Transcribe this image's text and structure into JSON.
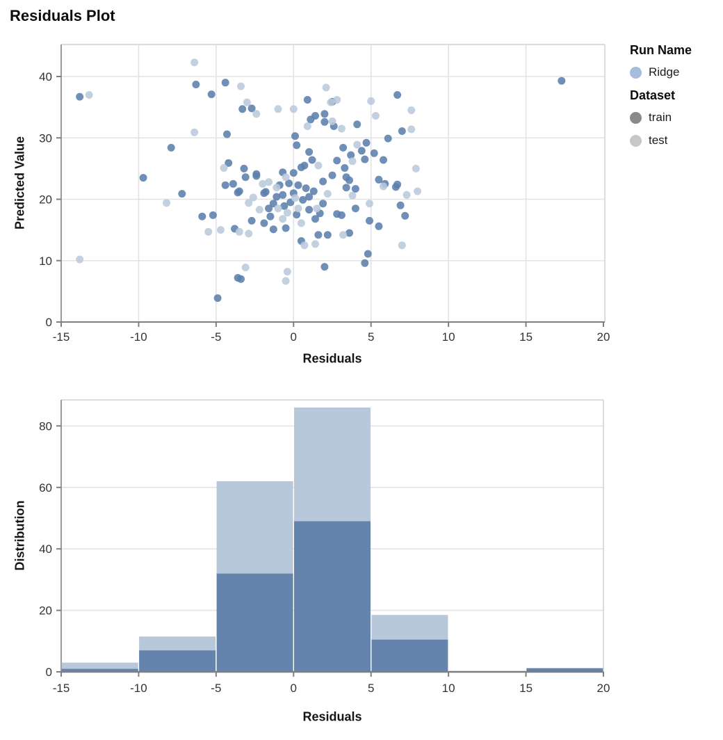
{
  "title": "Residuals Plot",
  "legend": {
    "run_name_title": "Run Name",
    "runs": [
      {
        "label": "Ridge",
        "color": "#a5bcdb"
      }
    ],
    "dataset_title": "Dataset",
    "datasets": [
      {
        "label": "train",
        "color": "#8a8a8a"
      },
      {
        "label": "test",
        "color": "#c7c7c7"
      }
    ]
  },
  "colors": {
    "train_point": "#5c80ad",
    "test_point": "#b9c9dc",
    "hist_train": "#6484ae",
    "hist_test": "#b7c8da",
    "grid": "#e3e3e3",
    "border": "#dcdcdc",
    "axis": "#7f7f7f",
    "side_axis": "#9a9a9a",
    "tick_text": "#333333"
  },
  "chart_data": [
    {
      "type": "scatter",
      "title": "Residuals Plot",
      "xlabel": "Residuals",
      "ylabel": "Predicted Value",
      "xlim": [
        -15,
        20.1
      ],
      "ylim": [
        0,
        45.2
      ],
      "xticks": [
        -15,
        -10,
        -5,
        0,
        5,
        10,
        15,
        20
      ],
      "yticks": [
        0,
        10,
        20,
        30,
        40
      ],
      "grid": true,
      "legend_position": "right",
      "series": [
        {
          "name": "Ridge / train",
          "points": [
            [
              -13.8,
              36.7
            ],
            [
              -6.3,
              38.7
            ],
            [
              -5.3,
              37.1
            ],
            [
              -4.4,
              39.0
            ],
            [
              -3.3,
              34.7
            ],
            [
              -2.7,
              34.8
            ],
            [
              0.9,
              36.2
            ],
            [
              1.4,
              33.6
            ],
            [
              2.0,
              33.9
            ],
            [
              1.1,
              33.0
            ],
            [
              2.0,
              32.6
            ],
            [
              -4.3,
              30.6
            ],
            [
              0.1,
              30.3
            ],
            [
              0.2,
              28.8
            ],
            [
              -7.9,
              28.4
            ],
            [
              1.0,
              27.7
            ],
            [
              -4.2,
              25.9
            ],
            [
              -3.2,
              25.0
            ],
            [
              -2.4,
              24.1
            ],
            [
              -0.7,
              24.4
            ],
            [
              0.0,
              24.3
            ],
            [
              0.5,
              25.2
            ],
            [
              0.7,
              25.5
            ],
            [
              1.2,
              26.4
            ],
            [
              1.9,
              22.9
            ],
            [
              -9.7,
              23.5
            ],
            [
              17.3,
              39.3
            ],
            [
              6.7,
              37.0
            ],
            [
              2.5,
              35.9
            ],
            [
              4.1,
              32.2
            ],
            [
              2.6,
              31.9
            ],
            [
              7.0,
              31.1
            ],
            [
              6.1,
              29.9
            ],
            [
              4.7,
              29.2
            ],
            [
              3.2,
              28.4
            ],
            [
              4.4,
              27.9
            ],
            [
              5.2,
              27.5
            ],
            [
              3.7,
              27.2
            ],
            [
              2.8,
              26.3
            ],
            [
              4.6,
              26.5
            ],
            [
              5.8,
              26.4
            ],
            [
              3.3,
              25.1
            ],
            [
              2.5,
              23.9
            ],
            [
              3.4,
              23.6
            ],
            [
              3.6,
              23.1
            ],
            [
              5.5,
              23.2
            ],
            [
              5.9,
              22.5
            ],
            [
              6.7,
              22.4
            ],
            [
              -7.2,
              20.9
            ],
            [
              -5.9,
              17.2
            ],
            [
              -5.2,
              17.4
            ],
            [
              -3.8,
              15.2
            ],
            [
              -3.6,
              21.1
            ],
            [
              -2.7,
              16.5
            ],
            [
              -1.8,
              21.2
            ],
            [
              -1.9,
              16.1
            ],
            [
              -1.6,
              18.5
            ],
            [
              -1.3,
              19.3
            ],
            [
              -1.5,
              17.2
            ],
            [
              -1.3,
              15.1
            ],
            [
              -1.1,
              20.4
            ],
            [
              -0.7,
              20.7
            ],
            [
              -0.5,
              15.3
            ],
            [
              -0.2,
              19.5
            ],
            [
              0.0,
              21.0
            ],
            [
              0.6,
              19.9
            ],
            [
              0.5,
              13.2
            ],
            [
              1.0,
              20.4
            ],
            [
              1.3,
              21.3
            ],
            [
              1.4,
              16.8
            ],
            [
              1.6,
              14.2
            ],
            [
              1.9,
              19.3
            ],
            [
              2.2,
              14.2
            ],
            [
              -3.6,
              7.2
            ],
            [
              -3.4,
              7.0
            ],
            [
              -4.9,
              3.9
            ],
            [
              3.4,
              21.9
            ],
            [
              4.0,
              21.7
            ],
            [
              6.6,
              22.0
            ],
            [
              4.0,
              18.5
            ],
            [
              6.9,
              19.0
            ],
            [
              3.1,
              17.4
            ],
            [
              2.8,
              17.6
            ],
            [
              4.9,
              16.5
            ],
            [
              7.2,
              17.3
            ],
            [
              5.5,
              15.6
            ],
            [
              3.6,
              14.5
            ],
            [
              4.8,
              11.1
            ],
            [
              4.6,
              9.6
            ],
            [
              2.0,
              9.0
            ],
            [
              -3.1,
              23.6
            ],
            [
              -2.4,
              23.8
            ],
            [
              -3.5,
              21.3
            ],
            [
              -1.9,
              21.0
            ],
            [
              -0.9,
              22.3
            ],
            [
              -0.3,
              22.6
            ],
            [
              0.3,
              22.3
            ],
            [
              0.8,
              21.8
            ],
            [
              -0.6,
              18.9
            ],
            [
              0.2,
              17.5
            ],
            [
              1.0,
              18.3
            ],
            [
              1.7,
              17.7
            ],
            [
              -4.4,
              22.3
            ],
            [
              -3.9,
              22.5
            ]
          ]
        },
        {
          "name": "Ridge / test",
          "points": [
            [
              -6.4,
              42.3
            ],
            [
              -13.2,
              37.0
            ],
            [
              -3.4,
              38.4
            ],
            [
              -3.0,
              35.8
            ],
            [
              -2.4,
              33.9
            ],
            [
              -1.0,
              34.7
            ],
            [
              0.0,
              34.7
            ],
            [
              2.1,
              38.2
            ],
            [
              2.4,
              35.8
            ],
            [
              0.9,
              31.9
            ],
            [
              -6.4,
              30.9
            ],
            [
              -4.5,
              25.1
            ],
            [
              -0.5,
              23.6
            ],
            [
              1.6,
              25.5
            ],
            [
              5.0,
              36.0
            ],
            [
              2.8,
              36.2
            ],
            [
              7.6,
              34.5
            ],
            [
              5.3,
              33.6
            ],
            [
              2.5,
              32.7
            ],
            [
              3.1,
              31.5
            ],
            [
              7.6,
              31.4
            ],
            [
              4.1,
              28.9
            ],
            [
              3.8,
              26.2
            ],
            [
              7.9,
              25.0
            ],
            [
              -8.2,
              19.4
            ],
            [
              -5.5,
              14.7
            ],
            [
              -3.5,
              14.7
            ],
            [
              -2.9,
              14.4
            ],
            [
              -2.9,
              19.4
            ],
            [
              -2.2,
              18.3
            ],
            [
              -1.0,
              18.5
            ],
            [
              -1.1,
              21.9
            ],
            [
              -0.7,
              16.8
            ],
            [
              -0.4,
              17.8
            ],
            [
              0.3,
              18.5
            ],
            [
              0.5,
              16.1
            ],
            [
              0.7,
              12.5
            ],
            [
              1.4,
              12.7
            ],
            [
              1.5,
              18.5
            ],
            [
              -13.8,
              10.2
            ],
            [
              -3.1,
              8.9
            ],
            [
              -0.4,
              8.2
            ],
            [
              -0.5,
              6.7
            ],
            [
              3.8,
              20.6
            ],
            [
              5.8,
              22.1
            ],
            [
              7.3,
              20.7
            ],
            [
              8.0,
              21.3
            ],
            [
              4.9,
              19.3
            ],
            [
              3.2,
              14.2
            ],
            [
              7.0,
              12.5
            ],
            [
              -2.0,
              22.5
            ],
            [
              0.1,
              20.2
            ],
            [
              -1.6,
              22.8
            ],
            [
              2.2,
              20.9
            ],
            [
              -2.6,
              20.3
            ],
            [
              -4.7,
              15.0
            ]
          ]
        }
      ]
    },
    {
      "type": "bar",
      "subtype": "histogram-stacked",
      "xlabel": "Residuals",
      "ylabel": "Distribution",
      "bin_edges": [
        -15,
        -10,
        -5,
        0,
        5,
        10,
        15,
        20
      ],
      "xticks": [
        -15,
        -10,
        -5,
        0,
        5,
        10,
        15,
        20
      ],
      "yticks": [
        0,
        20,
        40,
        60,
        80
      ],
      "ylim": [
        0,
        88.5
      ],
      "grid": true,
      "series": [
        {
          "name": "Ridge / train",
          "values": [
            1,
            7,
            32,
            49,
            10.5,
            0,
            1.2
          ]
        },
        {
          "name": "Ridge / test (stacked above train)",
          "values": [
            2,
            4.5,
            30,
            37,
            8,
            0,
            0
          ]
        }
      ]
    }
  ]
}
